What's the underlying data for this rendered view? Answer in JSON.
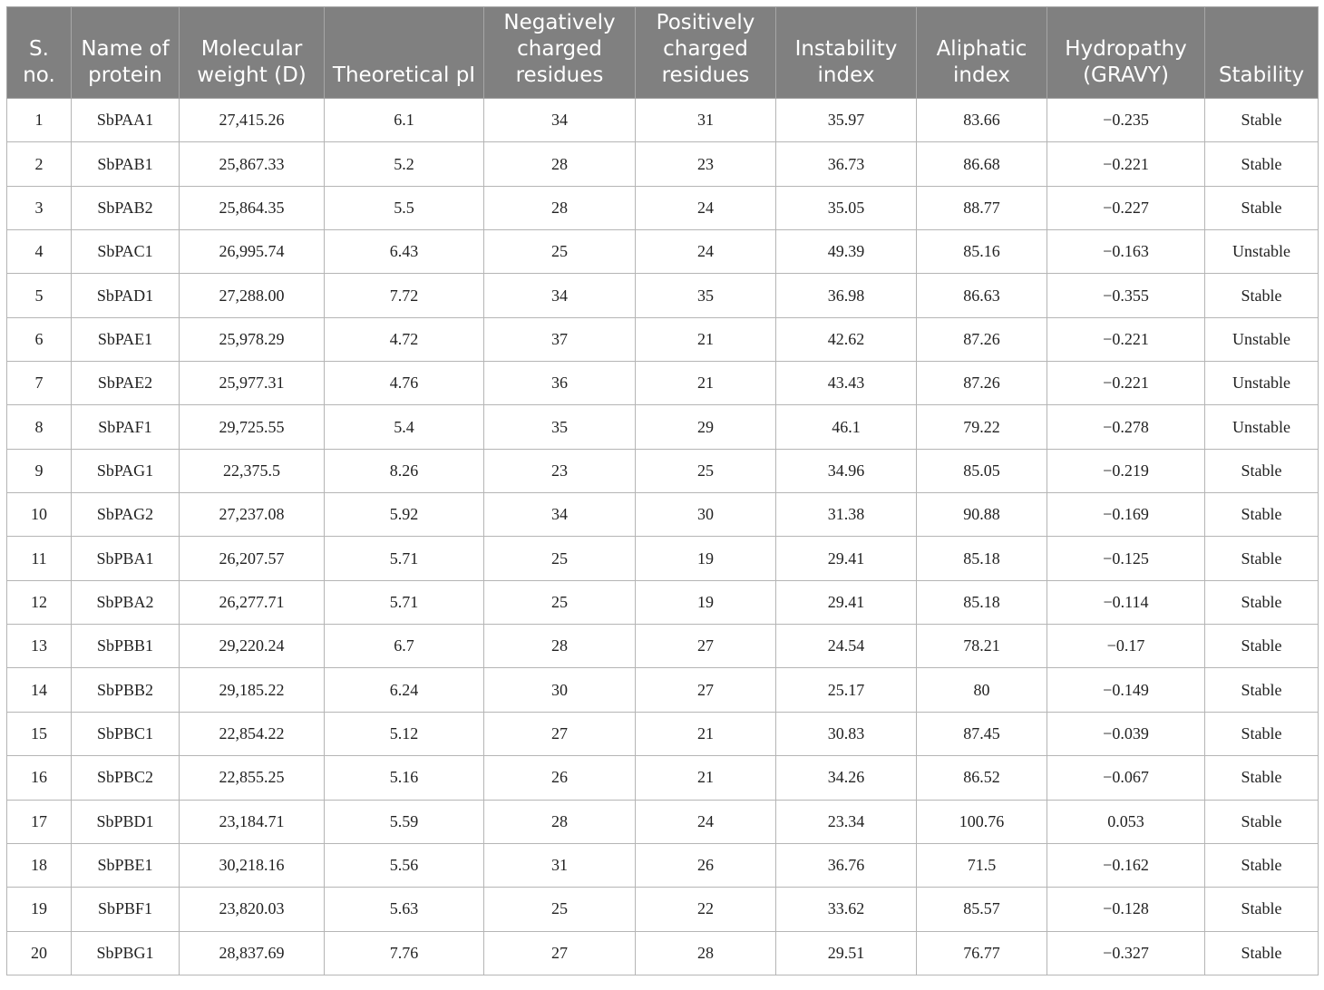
{
  "table": {
    "headers": [
      "S. no.",
      "Name of protein",
      "Molecular weight (D)",
      "Theoretical pI",
      "Negatively charged residues",
      "Positively charged residues",
      "Instability index",
      "Aliphatic index",
      "Hydropathy (GRAVY)",
      "Stability"
    ],
    "rows": [
      [
        "1",
        "SbPAA1",
        "27,415.26",
        "6.1",
        "34",
        "31",
        "35.97",
        "83.66",
        "−0.235",
        "Stable"
      ],
      [
        "2",
        "SbPAB1",
        "25,867.33",
        "5.2",
        "28",
        "23",
        "36.73",
        "86.68",
        "−0.221",
        "Stable"
      ],
      [
        "3",
        "SbPAB2",
        "25,864.35",
        "5.5",
        "28",
        "24",
        "35.05",
        "88.77",
        "−0.227",
        "Stable"
      ],
      [
        "4",
        "SbPAC1",
        "26,995.74",
        "6.43",
        "25",
        "24",
        "49.39",
        "85.16",
        "−0.163",
        "Unstable"
      ],
      [
        "5",
        "SbPAD1",
        "27,288.00",
        "7.72",
        "34",
        "35",
        "36.98",
        "86.63",
        "−0.355",
        "Stable"
      ],
      [
        "6",
        "SbPAE1",
        "25,978.29",
        "4.72",
        "37",
        "21",
        "42.62",
        "87.26",
        "−0.221",
        "Unstable"
      ],
      [
        "7",
        "SbPAE2",
        "25,977.31",
        "4.76",
        "36",
        "21",
        "43.43",
        "87.26",
        "−0.221",
        "Unstable"
      ],
      [
        "8",
        "SbPAF1",
        "29,725.55",
        "5.4",
        "35",
        "29",
        "46.1",
        "79.22",
        "−0.278",
        "Unstable"
      ],
      [
        "9",
        "SbPAG1",
        "22,375.5",
        "8.26",
        "23",
        "25",
        "34.96",
        "85.05",
        "−0.219",
        "Stable"
      ],
      [
        "10",
        "SbPAG2",
        "27,237.08",
        "5.92",
        "34",
        "30",
        "31.38",
        "90.88",
        "−0.169",
        "Stable"
      ],
      [
        "11",
        "SbPBA1",
        "26,207.57",
        "5.71",
        "25",
        "19",
        "29.41",
        "85.18",
        "−0.125",
        "Stable"
      ],
      [
        "12",
        "SbPBA2",
        "26,277.71",
        "5.71",
        "25",
        "19",
        "29.41",
        "85.18",
        "−0.114",
        "Stable"
      ],
      [
        "13",
        "SbPBB1",
        "29,220.24",
        "6.7",
        "28",
        "27",
        "24.54",
        "78.21",
        "−0.17",
        "Stable"
      ],
      [
        "14",
        "SbPBB2",
        "29,185.22",
        "6.24",
        "30",
        "27",
        "25.17",
        "80",
        "−0.149",
        "Stable"
      ],
      [
        "15",
        "SbPBC1",
        "22,854.22",
        "5.12",
        "27",
        "21",
        "30.83",
        "87.45",
        "−0.039",
        "Stable"
      ],
      [
        "16",
        "SbPBC2",
        "22,855.25",
        "5.16",
        "26",
        "21",
        "34.26",
        "86.52",
        "−0.067",
        "Stable"
      ],
      [
        "17",
        "SbPBD1",
        "23,184.71",
        "5.59",
        "28",
        "24",
        "23.34",
        "100.76",
        "0.053",
        "Stable"
      ],
      [
        "18",
        "SbPBE1",
        "30,218.16",
        "5.56",
        "31",
        "26",
        "36.76",
        "71.5",
        "−0.162",
        "Stable"
      ],
      [
        "19",
        "SbPBF1",
        "23,820.03",
        "5.63",
        "25",
        "22",
        "33.62",
        "85.57",
        "−0.128",
        "Stable"
      ],
      [
        "20",
        "SbPBG1",
        "28,837.69",
        "7.76",
        "27",
        "28",
        "29.51",
        "76.77",
        "−0.327",
        "Stable"
      ]
    ]
  }
}
